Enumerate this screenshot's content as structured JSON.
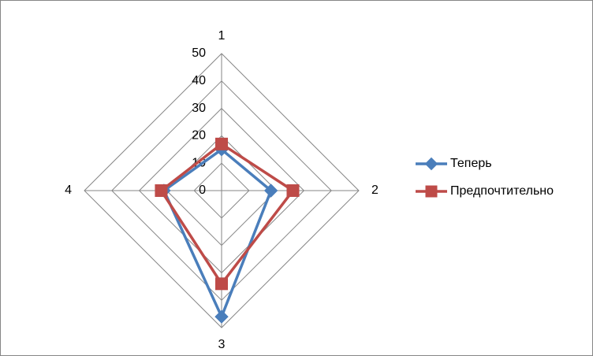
{
  "chart_data": {
    "type": "radar",
    "categories": [
      "1",
      "2",
      "3",
      "4"
    ],
    "series": [
      {
        "name": "Теперь",
        "color": "#4a7ebb",
        "marker": "diamond",
        "values": [
          15,
          18,
          46,
          21
        ]
      },
      {
        "name": "Предпочтительно",
        "color": "#be4b48",
        "marker": "square",
        "values": [
          17,
          26,
          34,
          22
        ]
      }
    ],
    "rlim": [
      0,
      50
    ],
    "rticks": [
      0,
      10,
      20,
      30,
      40,
      50
    ],
    "grid": true,
    "legend": "right"
  }
}
